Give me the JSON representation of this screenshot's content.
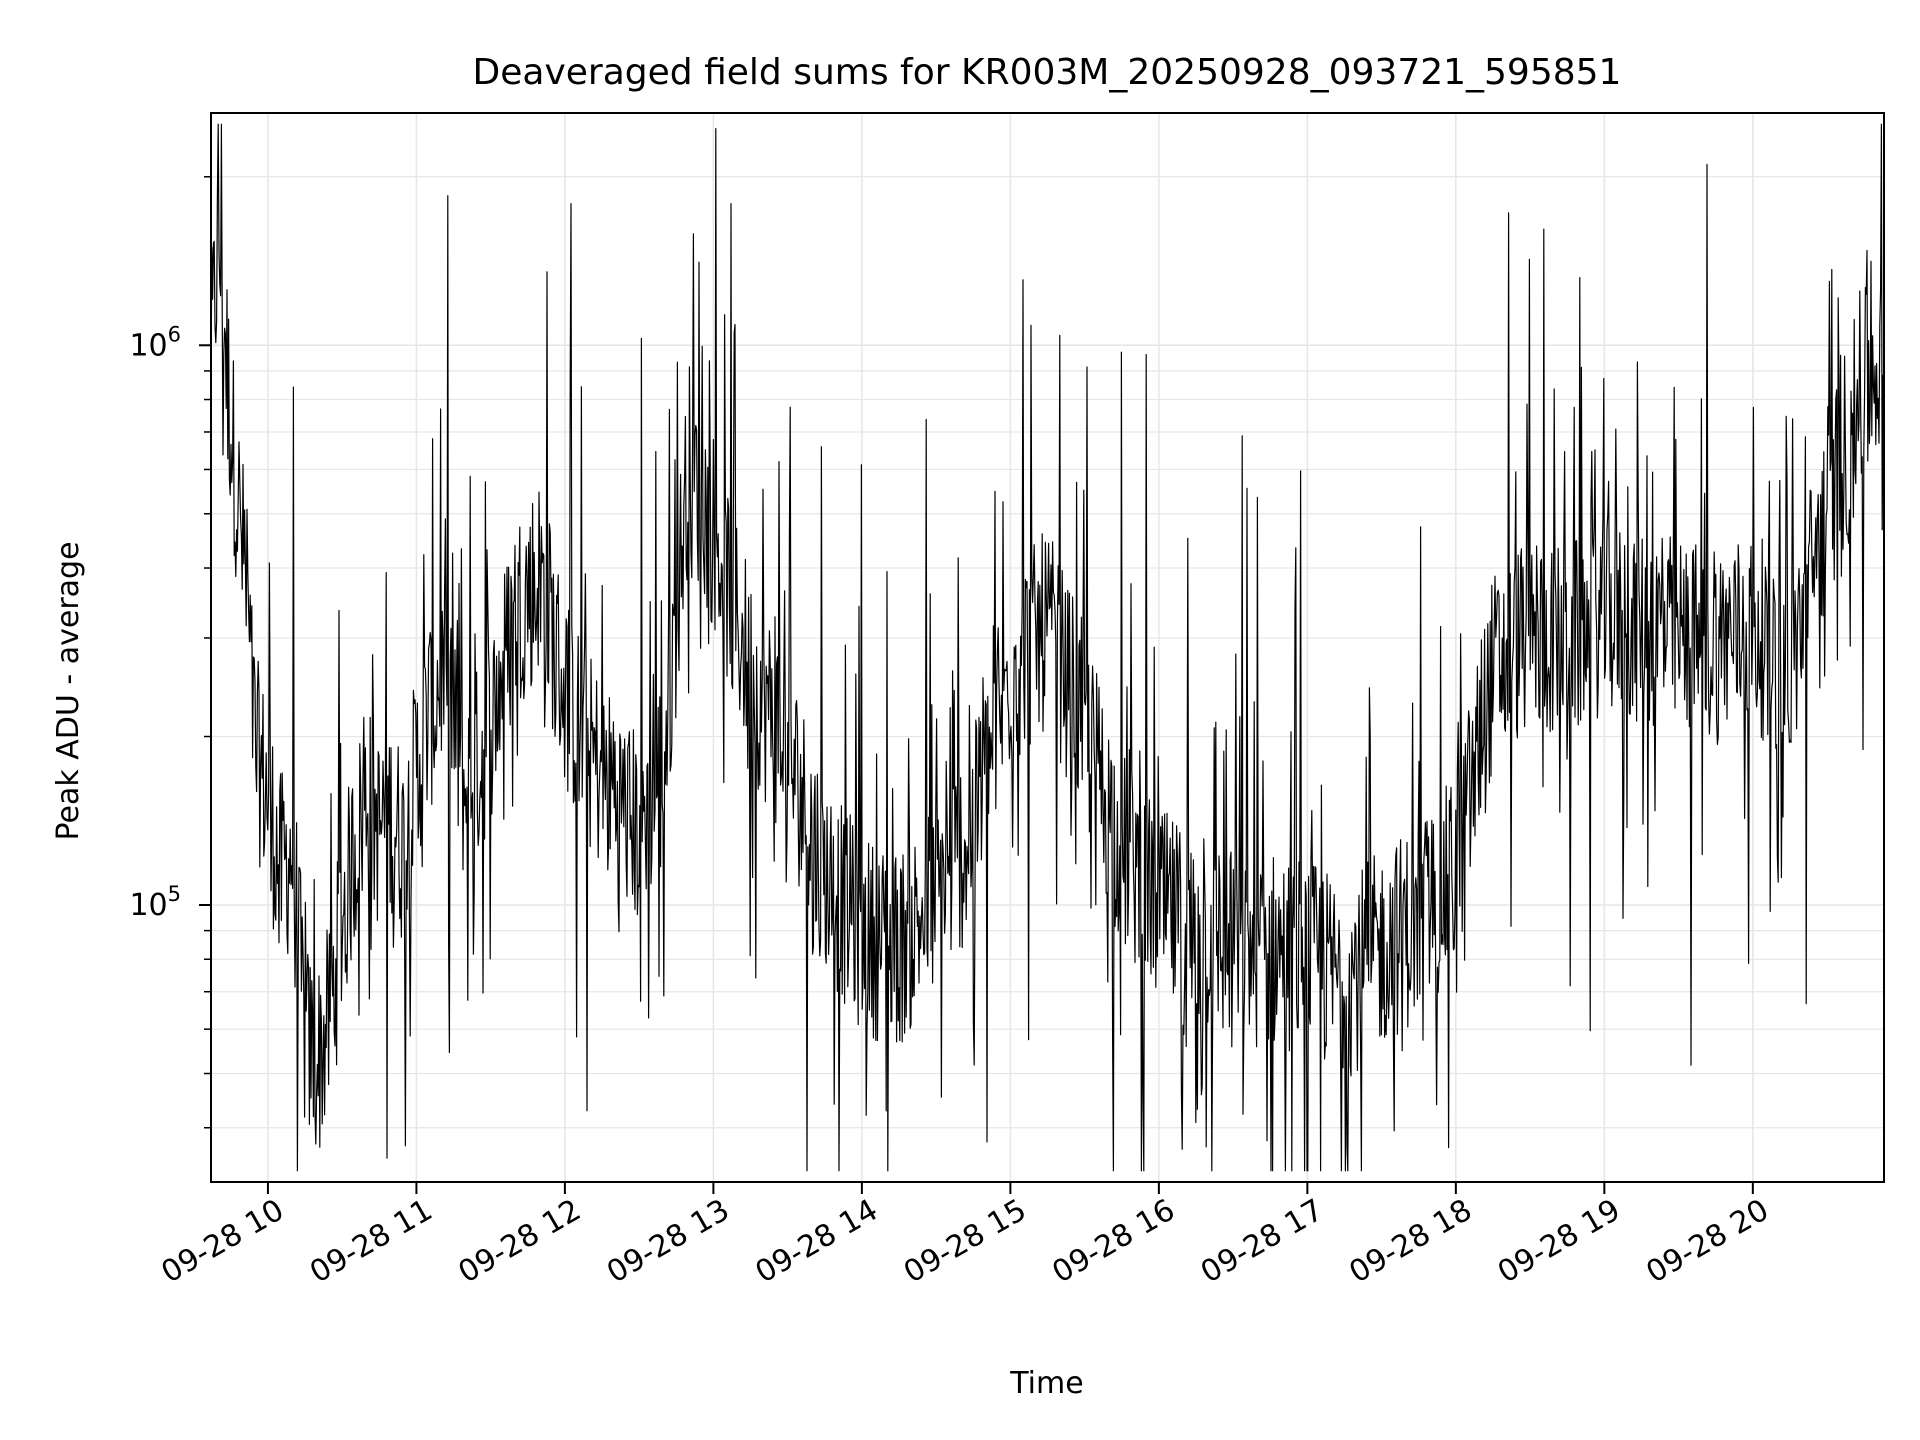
{
  "chart_data": {
    "type": "line",
    "title": "Deaveraged field sums for KR003M_20250928_093721_595851",
    "xlabel": "Time",
    "ylabel": "Peak ADU - average",
    "y_scale": "log",
    "ylim": [
      32000,
      2600000
    ],
    "xlim": [
      "2025-09-28 09:37",
      "2025-09-28 20:53"
    ],
    "grid": true,
    "line_color": "#000000",
    "grid_color": "#e6e6e6",
    "x_ticks": [
      "2025-09-28 10:00",
      "2025-09-28 11:00",
      "2025-09-28 12:00",
      "2025-09-28 13:00",
      "2025-09-28 14:00",
      "2025-09-28 15:00",
      "2025-09-28 16:00",
      "2025-09-28 17:00",
      "2025-09-28 18:00",
      "2025-09-28 19:00",
      "2025-09-28 20:00"
    ],
    "x_tick_labels": [
      "09-28 10",
      "09-28 11",
      "09-28 12",
      "09-28 13",
      "09-28 14",
      "09-28 15",
      "09-28 16",
      "09-28 17",
      "09-28 18",
      "09-28 19",
      "09-28 20"
    ],
    "y_ticks": [
      100000,
      1000000
    ],
    "y_tick_labels": [
      {
        "base": "10",
        "exp": "5"
      },
      {
        "base": "10",
        "exp": "6"
      }
    ],
    "series": [
      {
        "x": [
          "2025-09-28 09:37",
          "2025-09-28 09:40",
          "2025-09-28 09:45",
          "2025-09-28 09:50",
          "2025-09-28 09:55",
          "2025-09-28 10:00",
          "2025-09-28 10:05",
          "2025-09-28 10:10",
          "2025-09-28 10:15",
          "2025-09-28 10:20",
          "2025-09-28 10:25",
          "2025-09-28 10:30",
          "2025-09-28 10:35",
          "2025-09-28 10:40",
          "2025-09-28 10:45",
          "2025-09-28 10:50",
          "2025-09-28 10:55",
          "2025-09-28 11:00",
          "2025-09-28 11:10",
          "2025-09-28 11:20",
          "2025-09-28 11:30",
          "2025-09-28 11:40",
          "2025-09-28 11:50",
          "2025-09-28 12:00",
          "2025-09-28 12:10",
          "2025-09-28 12:20",
          "2025-09-28 12:30",
          "2025-09-28 12:40",
          "2025-09-28 12:50",
          "2025-09-28 13:00",
          "2025-09-28 13:15",
          "2025-09-28 13:30",
          "2025-09-28 13:45",
          "2025-09-28 14:00",
          "2025-09-28 14:15",
          "2025-09-28 14:30",
          "2025-09-28 14:45",
          "2025-09-28 15:00",
          "2025-09-28 15:15",
          "2025-09-28 15:30",
          "2025-09-28 15:45",
          "2025-09-28 16:00",
          "2025-09-28 16:15",
          "2025-09-28 16:30",
          "2025-09-28 16:45",
          "2025-09-28 17:00",
          "2025-09-28 17:15",
          "2025-09-28 17:30",
          "2025-09-28 17:45",
          "2025-09-28 18:00",
          "2025-09-28 18:15",
          "2025-09-28 18:30",
          "2025-09-28 18:45",
          "2025-09-28 19:00",
          "2025-09-28 19:15",
          "2025-09-28 19:30",
          "2025-09-28 19:45",
          "2025-09-28 20:00",
          "2025-09-28 20:15",
          "2025-09-28 20:30",
          "2025-09-28 20:45",
          "2025-09-28 20:53"
        ],
        "y": [
          900000,
          1500000,
          700000,
          400000,
          180000,
          150000,
          110000,
          120000,
          55000,
          50000,
          60000,
          90000,
          120000,
          150000,
          130000,
          140000,
          120000,
          170000,
          250000,
          150000,
          200000,
          320000,
          380000,
          230000,
          180000,
          150000,
          130000,
          170000,
          600000,
          450000,
          250000,
          180000,
          110000,
          85000,
          80000,
          100000,
          130000,
          250000,
          300000,
          200000,
          120000,
          95000,
          85000,
          80000,
          80000,
          78000,
          70000,
          80000,
          90000,
          110000,
          250000,
          300000,
          280000,
          320000,
          300000,
          290000,
          280000,
          300000,
          250000,
          500000,
          800000,
          900000
        ]
      }
    ]
  }
}
